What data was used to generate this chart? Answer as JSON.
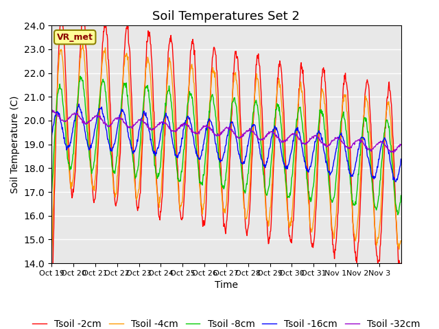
{
  "title": "Soil Temperatures Set 2",
  "xlabel": "Time",
  "ylabel": "Soil Temperature (C)",
  "ylim": [
    14.0,
    24.0
  ],
  "yticks": [
    14.0,
    15.0,
    16.0,
    17.0,
    18.0,
    19.0,
    20.0,
    21.0,
    22.0,
    23.0,
    24.0
  ],
  "xtick_labels": [
    "Oct 19",
    "Oct 20",
    "Oct 21",
    "Oct 22",
    "Oct 23",
    "Oct 24",
    "Oct 25",
    "Oct 26",
    "Oct 27",
    "Oct 28",
    "Oct 29",
    "Oct 30",
    "Oct 31",
    "Nov 1",
    "Nov 2",
    "Nov 3"
  ],
  "legend_label": "VR_met",
  "series_labels": [
    "Tsoil -2cm",
    "Tsoil -4cm",
    "Tsoil -8cm",
    "Tsoil -16cm",
    "Tsoil -32cm"
  ],
  "colors": [
    "#ff0000",
    "#ff9900",
    "#00cc00",
    "#0000ff",
    "#9900cc"
  ],
  "background_color": "#e8e8e8",
  "title_fontsize": 13,
  "axis_fontsize": 10,
  "legend_fontsize": 10
}
